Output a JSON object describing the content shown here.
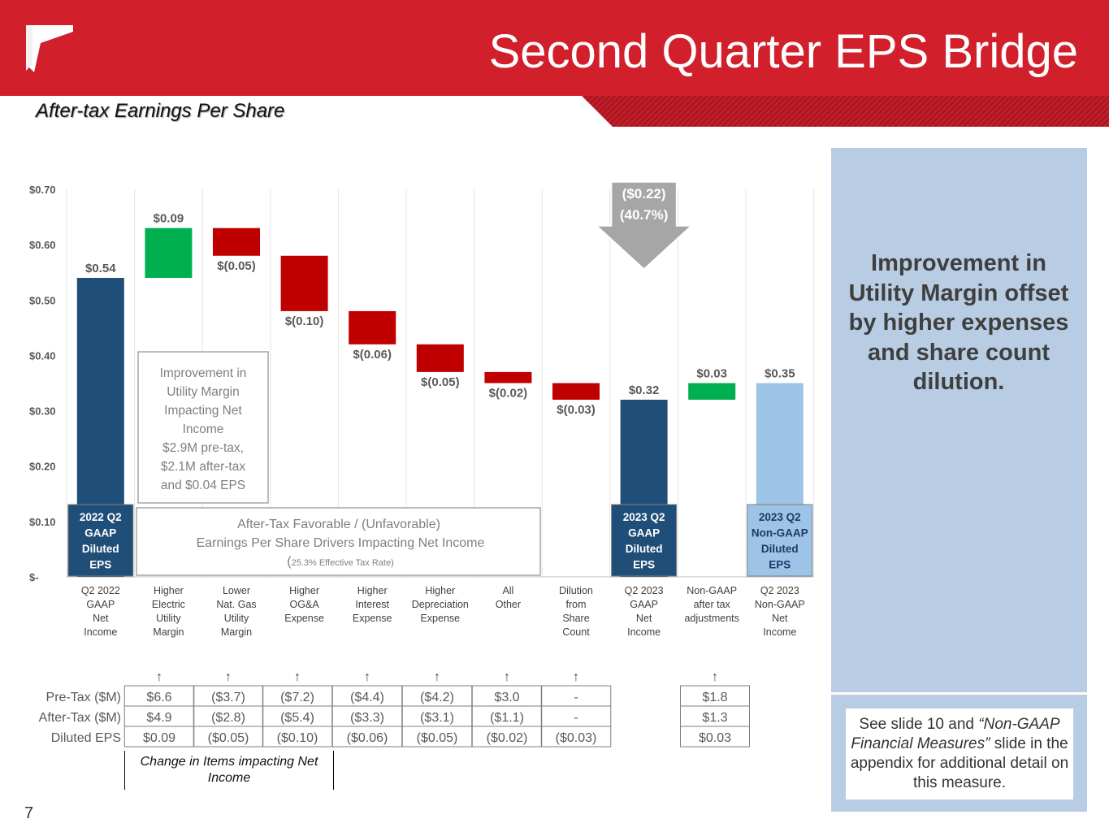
{
  "header": {
    "title": "Second Quarter EPS Bridge"
  },
  "subtitle": "After-tax Earnings Per Share",
  "page_number": "7",
  "side_panel": {
    "headline": "Improvement in Utility Margin offset by higher expenses and share count dilution.",
    "note_pre": "See slide 10 and ",
    "note_italic": "“Non-GAAP Financial Measures”",
    "note_post": " slide in the appendix for additional detail on this measure."
  },
  "footnote": "Change in Items impacting Net Income",
  "colors": {
    "brand_red": "#d21f2c",
    "dark_blue": "#1f4e79",
    "light_blue": "#9dc3e6",
    "green": "#00b050",
    "red": "#c00000",
    "gray": "#a6a6a6"
  },
  "chart_data": {
    "type": "bar",
    "subtype": "waterfall",
    "ylim": [
      0,
      0.7
    ],
    "yticks": [
      "$-",
      "$0.10",
      "$0.20",
      "$0.30",
      "$0.40",
      "$0.50",
      "$0.60",
      "$0.70"
    ],
    "grid": "vertical category separators",
    "categories": [
      {
        "label": [
          "Q2 2022",
          "GAAP",
          "Net",
          "Income"
        ],
        "kind": "total",
        "start": 0,
        "end": 0.54,
        "value_label": "$0.54"
      },
      {
        "label": [
          "Higher",
          "Electric",
          "Utility",
          "Margin"
        ],
        "kind": "increase",
        "start": 0.54,
        "end": 0.63,
        "value_label": "$0.09"
      },
      {
        "label": [
          "Lower",
          "Nat. Gas",
          "Utility",
          "Margin"
        ],
        "kind": "decrease",
        "start": 0.63,
        "end": 0.58,
        "value_label": "$(0.05)"
      },
      {
        "label": [
          "Higher",
          "OG&A",
          "Expense"
        ],
        "kind": "decrease",
        "start": 0.58,
        "end": 0.48,
        "value_label": "$(0.10)"
      },
      {
        "label": [
          "Higher",
          "Interest",
          "Expense"
        ],
        "kind": "decrease",
        "start": 0.48,
        "end": 0.42,
        "value_label": "$(0.06)"
      },
      {
        "label": [
          "Higher",
          "Depreciation",
          "Expense"
        ],
        "kind": "decrease",
        "start": 0.42,
        "end": 0.37,
        "value_label": "$(0.05)"
      },
      {
        "label": [
          "All",
          "Other"
        ],
        "kind": "decrease",
        "start": 0.37,
        "end": 0.35,
        "value_label": "$(0.02)"
      },
      {
        "label": [
          "Dilution",
          "from",
          "Share",
          "Count"
        ],
        "kind": "decrease",
        "start": 0.35,
        "end": 0.32,
        "value_label": "$(0.03)"
      },
      {
        "label": [
          "Q2 2023",
          "GAAP",
          "Net",
          "Income"
        ],
        "kind": "total",
        "start": 0,
        "end": 0.32,
        "value_label": "$0.32"
      },
      {
        "label": [
          "Non-GAAP",
          "after tax",
          "adjustments"
        ],
        "kind": "increase",
        "start": 0.32,
        "end": 0.35,
        "value_label": "$0.03"
      },
      {
        "label": [
          "Q2 2023",
          "Non-GAAP",
          "Net",
          "Income"
        ],
        "kind": "total_nongaap",
        "start": 0,
        "end": 0.35,
        "value_label": "$0.35"
      }
    ],
    "bar_inner_labels": {
      "0": [
        "2022 Q2",
        "GAAP",
        "Diluted",
        "EPS"
      ],
      "8": [
        "2023 Q2",
        "GAAP",
        "Diluted",
        "EPS"
      ],
      "10": [
        "2023 Q2",
        "Non-GAAP",
        "Diluted",
        "EPS"
      ]
    },
    "callout_arrow": [
      "($0.22)",
      "(40.7%)"
    ],
    "annotation_box": [
      "Improvement in",
      "Utility Margin",
      "Impacting Net",
      "Income",
      "$2.9M pre-tax,",
      "$2.1M after-tax",
      "and $0.04 EPS"
    ],
    "drivers_box": {
      "line1": "After-Tax Favorable / (Unfavorable)",
      "line2": "Earnings Per Share Drivers Impacting Net Income",
      "line3_open": "(",
      "line3_small": "25.3% Effective Tax Rate)"
    }
  },
  "table": {
    "rows": [
      {
        "label": "Pre-Tax ($M)",
        "values": [
          "$6.6",
          "($3.7)",
          "($7.2)",
          "($4.4)",
          "($4.2)",
          "$3.0",
          "-"
        ],
        "extra": "$1.8"
      },
      {
        "label": "After-Tax ($M)",
        "values": [
          "$4.9",
          "($2.8)",
          "($5.4)",
          "($3.3)",
          "($3.1)",
          "($1.1)",
          "-"
        ],
        "extra": "$1.3"
      },
      {
        "label": "Diluted EPS",
        "values": [
          "$0.09",
          "($0.05)",
          "($0.10)",
          "($0.06)",
          "($0.05)",
          "($0.02)",
          "($0.03)"
        ],
        "extra": "$0.03"
      }
    ],
    "arrow_glyph": "🡅"
  }
}
